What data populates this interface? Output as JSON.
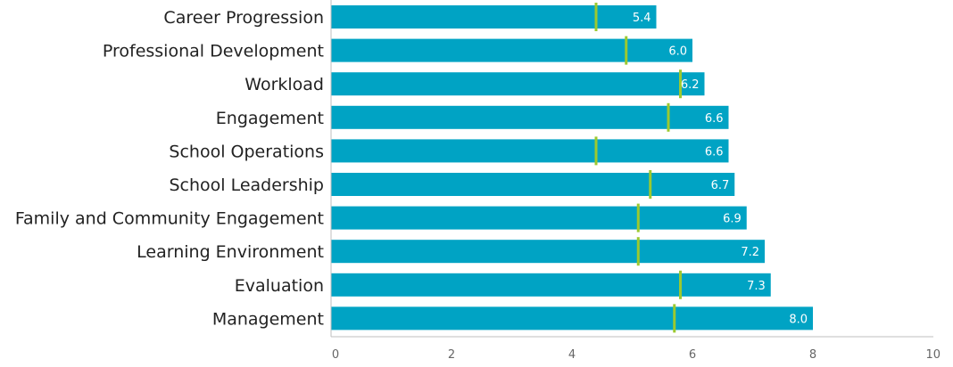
{
  "chart_data": {
    "type": "bar",
    "orientation": "horizontal",
    "categories": [
      "Career Progression",
      "Professional Development",
      "Workload",
      "Engagement",
      "School Operations",
      "School Leadership",
      "Family and Community Engagement",
      "Learning Environment",
      "Evaluation",
      "Management"
    ],
    "values": [
      5.4,
      6.0,
      6.2,
      6.6,
      6.6,
      6.7,
      6.9,
      7.2,
      7.3,
      8.0
    ],
    "value_labels": [
      "5.4",
      "6.0",
      "6.2",
      "6.6",
      "6.6",
      "6.7",
      "6.9",
      "7.2",
      "7.3",
      "8.0"
    ],
    "benchmark_values": [
      4.4,
      4.9,
      5.8,
      5.6,
      4.4,
      5.3,
      5.1,
      5.1,
      5.8,
      5.7
    ],
    "xlim": [
      0,
      10
    ],
    "xticks": [
      0,
      2,
      4,
      6,
      8,
      10
    ],
    "xtick_labels": [
      "0",
      "2",
      "4",
      "6",
      "8",
      "10"
    ],
    "grid": false,
    "colors": {
      "bar": "#00a3c4",
      "benchmark": "#9cc92f",
      "axis": "#bfbfbf",
      "value_label": "#ffffff"
    }
  }
}
